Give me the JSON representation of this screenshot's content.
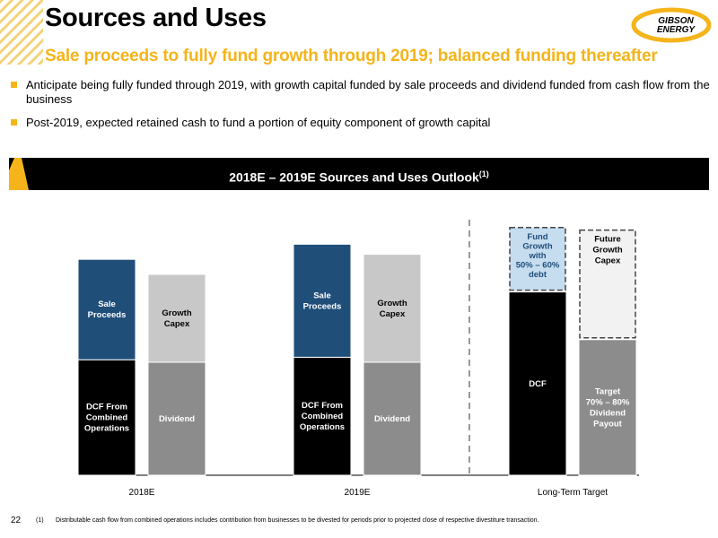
{
  "header": {
    "title": "Sources and Uses",
    "subtitle": "Sale proceeds to fully fund growth through 2019; balanced funding thereafter",
    "logo_text_line1": "GIBSON",
    "logo_text_line2": "ENERGY"
  },
  "bullets": [
    "Anticipate being fully funded through 2019, with growth capital funded by sale proceeds and dividend funded from cash flow from the business",
    "Post-2019, expected retained cash to fund a portion of equity component of growth capital"
  ],
  "banner": {
    "title": "2018E – 2019E Sources and Uses Outlook",
    "superscript": "(1)"
  },
  "colors": {
    "accent": "#f4b41a",
    "navy": "#1f4e79",
    "black": "#000000",
    "light_gray": "#c8c8c8",
    "mid_gray": "#8c8c8c",
    "light_blue": "#c6ddf0"
  },
  "chart_data": {
    "type": "bar",
    "stacked": true,
    "categories": [
      "2018E",
      "2019E",
      "Long-Term Target"
    ],
    "groups": [
      {
        "category": "2018E",
        "bars": [
          {
            "segments": [
              {
                "label": [
                  "DCF From",
                  "Combined",
                  "Operations"
                ],
                "value": 0.46,
                "color": "#000000",
                "text": "#ffffff"
              },
              {
                "label": [
                  "Sale",
                  "Proceeds"
                ],
                "value": 0.4,
                "color": "#1f4e79",
                "text": "#ffffff"
              }
            ]
          },
          {
            "segments": [
              {
                "label": [
                  "Dividend"
                ],
                "value": 0.45,
                "color": "#8c8c8c",
                "text": "#ffffff"
              },
              {
                "label": [
                  "Growth",
                  "Capex"
                ],
                "value": 0.35,
                "color": "#c8c8c8",
                "text": "#000000"
              }
            ]
          }
        ]
      },
      {
        "category": "2019E",
        "bars": [
          {
            "segments": [
              {
                "label": [
                  "DCF From",
                  "Combined",
                  "Operations"
                ],
                "value": 0.47,
                "color": "#000000",
                "text": "#ffffff"
              },
              {
                "label": [
                  "Sale",
                  "Proceeds"
                ],
                "value": 0.45,
                "color": "#1f4e79",
                "text": "#ffffff"
              }
            ]
          },
          {
            "segments": [
              {
                "label": [
                  "Dividend"
                ],
                "value": 0.45,
                "color": "#8c8c8c",
                "text": "#ffffff"
              },
              {
                "label": [
                  "Growth",
                  "Capex"
                ],
                "value": 0.43,
                "color": "#c8c8c8",
                "text": "#000000"
              }
            ]
          }
        ]
      },
      {
        "category": "Long-Term Target",
        "bars": [
          {
            "segments": [
              {
                "label": [
                  "DCF"
                ],
                "value": 0.73,
                "color": "#000000",
                "text": "#ffffff"
              },
              {
                "label": [
                  "Fund",
                  "Growth",
                  "with",
                  "50% – 60%",
                  "debt"
                ],
                "value": 0.26,
                "color": "#c6ddf0",
                "text": "#1f4e79",
                "dashed": true
              }
            ]
          },
          {
            "segments": [
              {
                "label": [
                  "Target",
                  "70% – 80%",
                  "Dividend",
                  "Payout"
                ],
                "value": 0.54,
                "color": "#8c8c8c",
                "text": "#ffffff"
              },
              {
                "label": [
                  "Future",
                  "Growth",
                  "Capex"
                ],
                "value": 0.44,
                "color": "#f2f2f2",
                "text": "#000000",
                "dashed": true
              }
            ]
          }
        ]
      }
    ],
    "ylim": [
      0,
      1
    ],
    "grid": false,
    "divider_before_category": 2
  },
  "footer": {
    "page_number": "22",
    "footnote_marker": "(1)",
    "footnote_text": "Distributable cash flow from combined operations includes contribution from businesses to be divested for periods prior to projected close of respective divestiture transaction."
  }
}
